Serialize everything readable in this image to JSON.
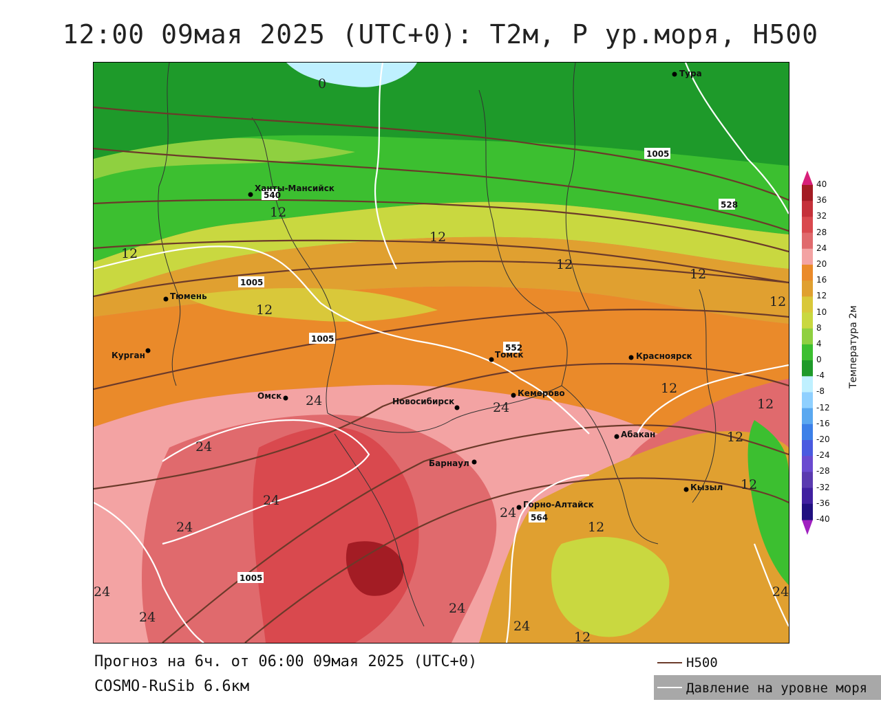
{
  "title": "12:00 09мая 2025 (UTC+0): T2м, P ур.моря, H500",
  "footer": {
    "forecast": "Прогноз на 6ч. от 06:00 09мая 2025 (UTC+0)",
    "model": "COSMO-RuSib 6.6км"
  },
  "legend": {
    "h500": "H500",
    "pressure": "Давление на уровне моря",
    "h500_color": "#6b3a2a",
    "pressure_color": "#ffffff"
  },
  "colorbar": {
    "title": "Температура 2м",
    "ticks": [
      "40",
      "36",
      "32",
      "28",
      "24",
      "20",
      "16",
      "12",
      "10",
      "8",
      "4",
      "0",
      "-4",
      "-8",
      "-12",
      "-16",
      "-20",
      "-24",
      "-28",
      "-32",
      "-36",
      "-40"
    ],
    "colors": [
      "#a31c24",
      "#c5313a",
      "#d9494e",
      "#e06a6d",
      "#f3a3a3",
      "#ea8a2a",
      "#e0a030",
      "#d9c83a",
      "#c9d840",
      "#8fd040",
      "#3cbf30",
      "#1e9a2a",
      "#bff0ff",
      "#8fd0ff",
      "#5aa8f0",
      "#3c80e8",
      "#4a5ae0",
      "#6a4ad0",
      "#5a3ab0",
      "#4020a0",
      "#201080"
    ]
  },
  "cities": [
    {
      "name": "Тура"
    },
    {
      "name": "Ханты-Мансийск"
    },
    {
      "name": "Тюмень"
    },
    {
      "name": "Курган"
    },
    {
      "name": "Омск"
    },
    {
      "name": "Новосибирск"
    },
    {
      "name": "Томск"
    },
    {
      "name": "Кемерово"
    },
    {
      "name": "Красноярск"
    },
    {
      "name": "Абакан"
    },
    {
      "name": "Барнаул"
    },
    {
      "name": "Горно-Алтайск"
    },
    {
      "name": "Кызыл"
    }
  ],
  "h500_labels": [
    "528",
    "540",
    "552",
    "564"
  ],
  "pressure_labels": [
    "1005",
    "1005",
    "1005",
    "1005"
  ],
  "temp_labels": [
    "0",
    "12",
    "12",
    "12",
    "12",
    "12",
    "12",
    "12",
    "12",
    "12",
    "12",
    "12",
    "12",
    "12",
    "24",
    "24",
    "24",
    "24",
    "24",
    "24",
    "24",
    "24",
    "24",
    "24",
    "24"
  ]
}
